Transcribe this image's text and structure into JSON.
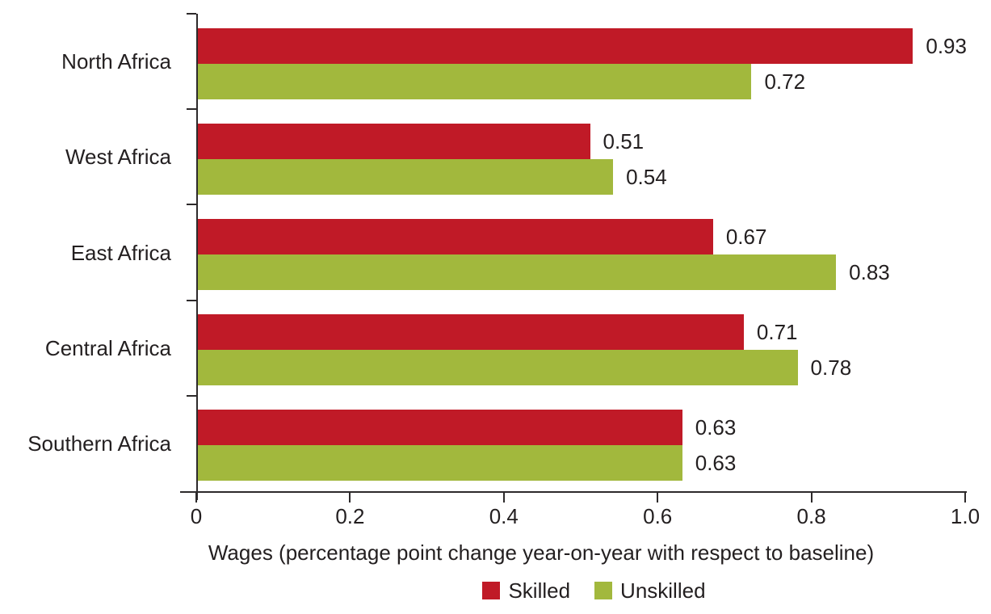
{
  "chart_data": {
    "type": "bar",
    "orientation": "horizontal",
    "title": "",
    "categories": [
      "North Africa",
      "West Africa",
      "East Africa",
      "Central Africa",
      "Southern Africa"
    ],
    "series": [
      {
        "name": "Skilled",
        "color": "#c01a27",
        "values": [
          0.93,
          0.51,
          0.67,
          0.71,
          0.63
        ]
      },
      {
        "name": "Unskilled",
        "color": "#a2b83d",
        "values": [
          0.72,
          0.54,
          0.83,
          0.78,
          0.63
        ]
      }
    ],
    "value_labels_shown": true,
    "value_label_decimals": 2,
    "xlabel": "Wages (percentage point change year-on-year with respect to baseline)",
    "xlim": [
      0,
      1.0
    ],
    "xticks": [
      0,
      0.2,
      0.4,
      0.6,
      0.8,
      1.0
    ],
    "xtick_labels": [
      "0",
      "0.2",
      "0.4",
      "0.6",
      "0.8",
      "1.0"
    ],
    "grid": false,
    "legend_position": "bottom"
  },
  "colors": {
    "axis": "#2d2a2b",
    "text": "#231f20",
    "background": "#ffffff",
    "skilled": "#c01a27",
    "unskilled": "#a2b83d"
  }
}
